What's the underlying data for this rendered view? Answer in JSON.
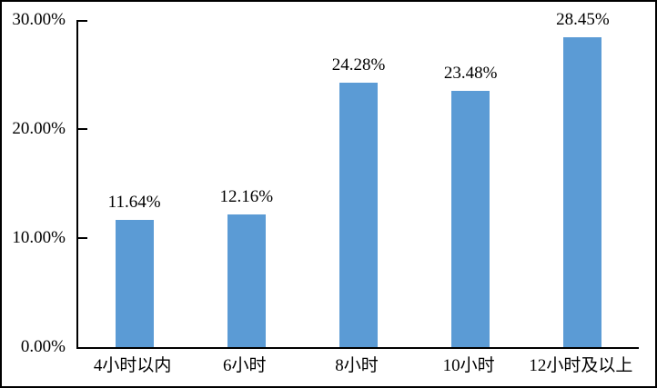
{
  "chart_data": {
    "type": "bar",
    "title": "",
    "xlabel": "",
    "ylabel": "",
    "categories": [
      "4小时以内",
      "6小时",
      "8小时",
      "10小时",
      "12小时及以上"
    ],
    "values": [
      11.64,
      12.16,
      24.28,
      23.48,
      28.45
    ],
    "data_labels": [
      "11.64%",
      "12.16%",
      "24.28%",
      "23.48%",
      "28.45%"
    ],
    "ylim": [
      0,
      30
    ],
    "y_ticks": [
      {
        "value": 0,
        "label": "0.00%"
      },
      {
        "value": 10,
        "label": "10.00%"
      },
      {
        "value": 20,
        "label": "20.00%"
      },
      {
        "value": 30,
        "label": "30.00%"
      }
    ],
    "grid": false,
    "legend_position": "none",
    "bar_color": "#5B9BD5",
    "axis_color": "#000000",
    "background_color": "#FFFFFF"
  }
}
